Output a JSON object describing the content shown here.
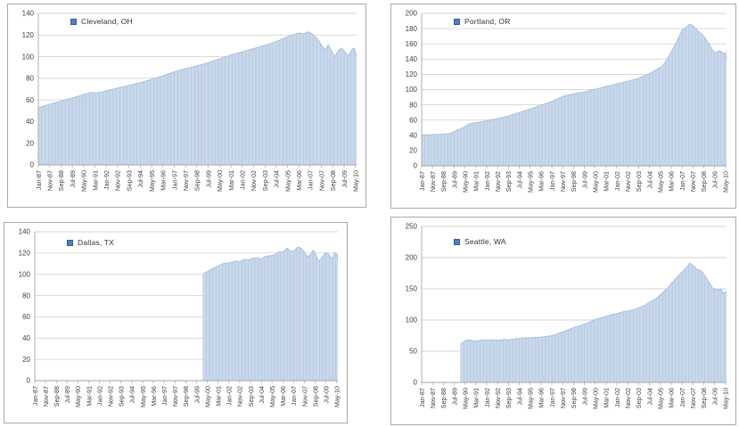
{
  "colors": {
    "area_fill": "#C9D8EB",
    "bar_line": "#AEC3DC",
    "area_edge": "#9FB9D9",
    "legend_marker": "#4F81BD",
    "gridline": "#D6D6D6",
    "axis_line": "#A6A6A6",
    "text": "#404040",
    "panel_border": "#A9A9A9"
  },
  "x_axis": {
    "first_month": "Jan-87",
    "last_label": "May-10",
    "tick_interval_months": 10
  },
  "chart_data": [
    {
      "type": "area",
      "legend": "Cleveland, OH",
      "ylim": [
        0,
        140
      ],
      "y_tick_labels": [
        "0",
        "20",
        "40",
        "60",
        "80",
        "100",
        "120",
        "140"
      ],
      "x_tick_interval_months": 10,
      "total_months": 282,
      "grid": true,
      "legend_position": "top-inside",
      "x_tick_labels": [
        "Jan-87",
        "Nov-87",
        "Sep-88",
        "Jul-89",
        "May-90",
        "Mar-91",
        "Jan-92",
        "Nov-92",
        "Sep-93",
        "Jul-94",
        "May-95",
        "Mar-96",
        "Jan-97",
        "Nov-97",
        "Sep-98",
        "Jul-99",
        "May-00",
        "Mar-01",
        "Jan-02",
        "Nov-02",
        "Sep-03",
        "Jul-04",
        "May-05",
        "Mar-06",
        "Jan-07",
        "Nov-07",
        "Sep-08",
        "Jul-09",
        "May-10"
      ],
      "series": [
        {
          "name": "Cleveland, OH",
          "keypoints": [
            [
              0,
              53
            ],
            [
              10,
              56
            ],
            [
              20,
              59
            ],
            [
              30,
              62
            ],
            [
              40,
              65
            ],
            [
              46,
              67
            ],
            [
              52,
              66.5
            ],
            [
              60,
              68.5
            ],
            [
              70,
              71
            ],
            [
              80,
              73.5
            ],
            [
              90,
              76
            ],
            [
              100,
              79
            ],
            [
              110,
              82.5
            ],
            [
              120,
              86
            ],
            [
              130,
              89
            ],
            [
              140,
              91.5
            ],
            [
              150,
              94.5
            ],
            [
              160,
              98
            ],
            [
              170,
              101.5
            ],
            [
              180,
              104.5
            ],
            [
              190,
              107.5
            ],
            [
              200,
              110.5
            ],
            [
              210,
              114
            ],
            [
              218,
              117.5
            ],
            [
              224,
              120
            ],
            [
              230,
              122
            ],
            [
              234,
              121
            ],
            [
              238,
              123
            ],
            [
              242,
              121
            ],
            [
              246,
              117
            ],
            [
              250,
              111
            ],
            [
              253,
              106
            ],
            [
              256,
              111
            ],
            [
              259,
              105
            ],
            [
              262,
              100
            ],
            [
              265,
              106
            ],
            [
              268,
              108
            ],
            [
              271,
              104
            ],
            [
              274,
              101
            ],
            [
              277,
              107
            ],
            [
              279,
              108
            ],
            [
              280,
              104
            ],
            [
              281,
              100
            ]
          ]
        }
      ]
    },
    {
      "type": "area",
      "legend": "Portland, OR",
      "ylim": [
        0,
        200
      ],
      "y_tick_labels": [
        "0",
        "20",
        "40",
        "60",
        "80",
        "100",
        "120",
        "140",
        "160",
        "180",
        "200"
      ],
      "x_tick_interval_months": 10,
      "total_months": 282,
      "grid": true,
      "legend_position": "top-inside",
      "x_tick_labels": [
        "Jan-87",
        "Nov-87",
        "Sep-88",
        "Jul-89",
        "May-90",
        "Mar-91",
        "Jan-92",
        "Nov-92",
        "Sep-93",
        "Jul-94",
        "May-95",
        "Mar-96",
        "Jan-97",
        "Nov-97",
        "Sep-98",
        "Jul-99",
        "May-00",
        "Mar-01",
        "Jan-02",
        "Nov-02",
        "Sep-03",
        "Jul-04",
        "May-05",
        "Mar-06",
        "Jan-07",
        "Nov-07",
        "Sep-08",
        "Jul-09",
        "May-10"
      ],
      "series": [
        {
          "name": "Portland, OR",
          "keypoints": [
            [
              0,
              40.5
            ],
            [
              10,
              41
            ],
            [
              20,
              41.5
            ],
            [
              26,
              42.5
            ],
            [
              32,
              46
            ],
            [
              38,
              50
            ],
            [
              44,
              55
            ],
            [
              50,
              56.5
            ],
            [
              56,
              58
            ],
            [
              60,
              59.5
            ],
            [
              70,
              62
            ],
            [
              80,
              65.5
            ],
            [
              90,
              70
            ],
            [
              100,
              74.5
            ],
            [
              110,
              79.5
            ],
            [
              120,
              84.5
            ],
            [
              126,
              88.5
            ],
            [
              130,
              91
            ],
            [
              140,
              94.5
            ],
            [
              150,
              97
            ],
            [
              160,
              100.5
            ],
            [
              170,
              104
            ],
            [
              180,
              107.5
            ],
            [
              190,
              111
            ],
            [
              200,
              115
            ],
            [
              210,
              121
            ],
            [
              216,
              126
            ],
            [
              222,
              131
            ],
            [
              228,
              144
            ],
            [
              234,
              160
            ],
            [
              240,
              178
            ],
            [
              244,
              182
            ],
            [
              247,
              186
            ],
            [
              250,
              184
            ],
            [
              254,
              178
            ],
            [
              260,
              170
            ],
            [
              264,
              162
            ],
            [
              268,
              152
            ],
            [
              271,
              148
            ],
            [
              274,
              151
            ],
            [
              277,
              149
            ],
            [
              279,
              146
            ],
            [
              280,
              149
            ],
            [
              281,
              140
            ]
          ]
        }
      ]
    },
    {
      "type": "area",
      "legend": "Dallas, TX",
      "ylim": [
        0,
        140
      ],
      "y_tick_labels": [
        "0",
        "20",
        "40",
        "60",
        "80",
        "100",
        "120",
        "140"
      ],
      "x_tick_interval_months": 10,
      "total_months": 282,
      "grid": true,
      "legend_position": "top-inside",
      "x_tick_labels": [
        "Jan-87",
        "Nov-87",
        "Sep-88",
        "Jul-89",
        "May-90",
        "Mar-91",
        "Jan-92",
        "Nov-92",
        "Sep-93",
        "Jul-94",
        "May-95",
        "Mar-96",
        "Jan-97",
        "Nov-97",
        "Sep-98",
        "Jul-99",
        "May-00",
        "Mar-01",
        "Jan-02",
        "Nov-02",
        "Sep-03",
        "Jul-04",
        "May-05",
        "Mar-06",
        "Jan-07",
        "Nov-07",
        "Sep-08",
        "Jul-09",
        "May-10"
      ],
      "series": [
        {
          "name": "Dallas, TX",
          "keypoints": [
            [
              156,
              100.5
            ],
            [
              160,
              102.5
            ],
            [
              164,
              105
            ],
            [
              168,
              107
            ],
            [
              170,
              107.5
            ],
            [
              174,
              110
            ],
            [
              178,
              110.5
            ],
            [
              182,
              111
            ],
            [
              186,
              112.5
            ],
            [
              190,
              112
            ],
            [
              194,
              114
            ],
            [
              198,
              113.5
            ],
            [
              202,
              115
            ],
            [
              206,
              115.5
            ],
            [
              210,
              114.5
            ],
            [
              214,
              117
            ],
            [
              218,
              117.5
            ],
            [
              222,
              118
            ],
            [
              226,
              121
            ],
            [
              230,
              121
            ],
            [
              234,
              124.5
            ],
            [
              238,
              121.5
            ],
            [
              241,
              122.5
            ],
            [
              244,
              126
            ],
            [
              247,
              124.5
            ],
            [
              250,
              121
            ],
            [
              253,
              116.5
            ],
            [
              256,
              119
            ],
            [
              258,
              122.5
            ],
            [
              260,
              120.5
            ],
            [
              262,
              114.5
            ],
            [
              264,
              112.5
            ],
            [
              266,
              115.5
            ],
            [
              268,
              118.5
            ],
            [
              270,
              120.5
            ],
            [
              272,
              119.5
            ],
            [
              274,
              117
            ],
            [
              276,
              114.5
            ],
            [
              277,
              118
            ],
            [
              278,
              120.5
            ],
            [
              280,
              119
            ],
            [
              281,
              114.5
            ]
          ]
        }
      ]
    },
    {
      "type": "area",
      "legend": "Seattle, WA",
      "ylim": [
        0,
        250
      ],
      "y_tick_labels": [
        "0",
        "50",
        "100",
        "150",
        "200",
        "250"
      ],
      "x_tick_interval_months": 10,
      "total_months": 282,
      "grid": true,
      "legend_position": "top-inside",
      "x_tick_labels": [
        "Jan-87",
        "Nov-87",
        "Sep-88",
        "Jul-89",
        "May-90",
        "Mar-91",
        "Jan-92",
        "Nov-92",
        "Sep-93",
        "Jul-94",
        "May-95",
        "Mar-96",
        "Jan-97",
        "Nov-97",
        "Sep-98",
        "Jul-99",
        "May-00",
        "Mar-01",
        "Jan-02",
        "Nov-02",
        "Sep-03",
        "Jul-04",
        "May-05",
        "Mar-06",
        "Jan-07",
        "Nov-07",
        "Sep-08",
        "Jul-09",
        "May-10"
      ],
      "series": [
        {
          "name": "Seattle, WA",
          "keypoints": [
            [
              36,
              61.5
            ],
            [
              40,
              67
            ],
            [
              44,
              68.5
            ],
            [
              48,
              66.5
            ],
            [
              52,
              67
            ],
            [
              56,
              68
            ],
            [
              60,
              67.5
            ],
            [
              64,
              68.5
            ],
            [
              70,
              67.5
            ],
            [
              76,
              69
            ],
            [
              80,
              68.5
            ],
            [
              86,
              70
            ],
            [
              90,
              70.5
            ],
            [
              96,
              71.5
            ],
            [
              100,
              71.5
            ],
            [
              106,
              72.5
            ],
            [
              110,
              72.5
            ],
            [
              116,
              74
            ],
            [
              120,
              75
            ],
            [
              126,
              78.5
            ],
            [
              130,
              81
            ],
            [
              136,
              85
            ],
            [
              140,
              88
            ],
            [
              146,
              91
            ],
            [
              150,
              93.5
            ],
            [
              156,
              97.5
            ],
            [
              160,
              101
            ],
            [
              166,
              104
            ],
            [
              170,
              106
            ],
            [
              176,
              109
            ],
            [
              180,
              110.5
            ],
            [
              186,
              113.5
            ],
            [
              190,
              114.5
            ],
            [
              196,
              117
            ],
            [
              200,
              119.5
            ],
            [
              206,
              124
            ],
            [
              210,
              128.5
            ],
            [
              216,
              134.5
            ],
            [
              220,
              140.5
            ],
            [
              226,
              150
            ],
            [
              230,
              158.5
            ],
            [
              236,
              170
            ],
            [
              240,
              177
            ],
            [
              244,
              184
            ],
            [
              247,
              191
            ],
            [
              250,
              188
            ],
            [
              254,
              181
            ],
            [
              257,
              180
            ],
            [
              260,
              174
            ],
            [
              263,
              166
            ],
            [
              266,
              157
            ],
            [
              268,
              152
            ],
            [
              270,
              149
            ],
            [
              273,
              148
            ],
            [
              276,
              149
            ],
            [
              278,
              144
            ],
            [
              279,
              142
            ],
            [
              280,
              146
            ],
            [
              281,
              143
            ]
          ]
        }
      ]
    }
  ]
}
